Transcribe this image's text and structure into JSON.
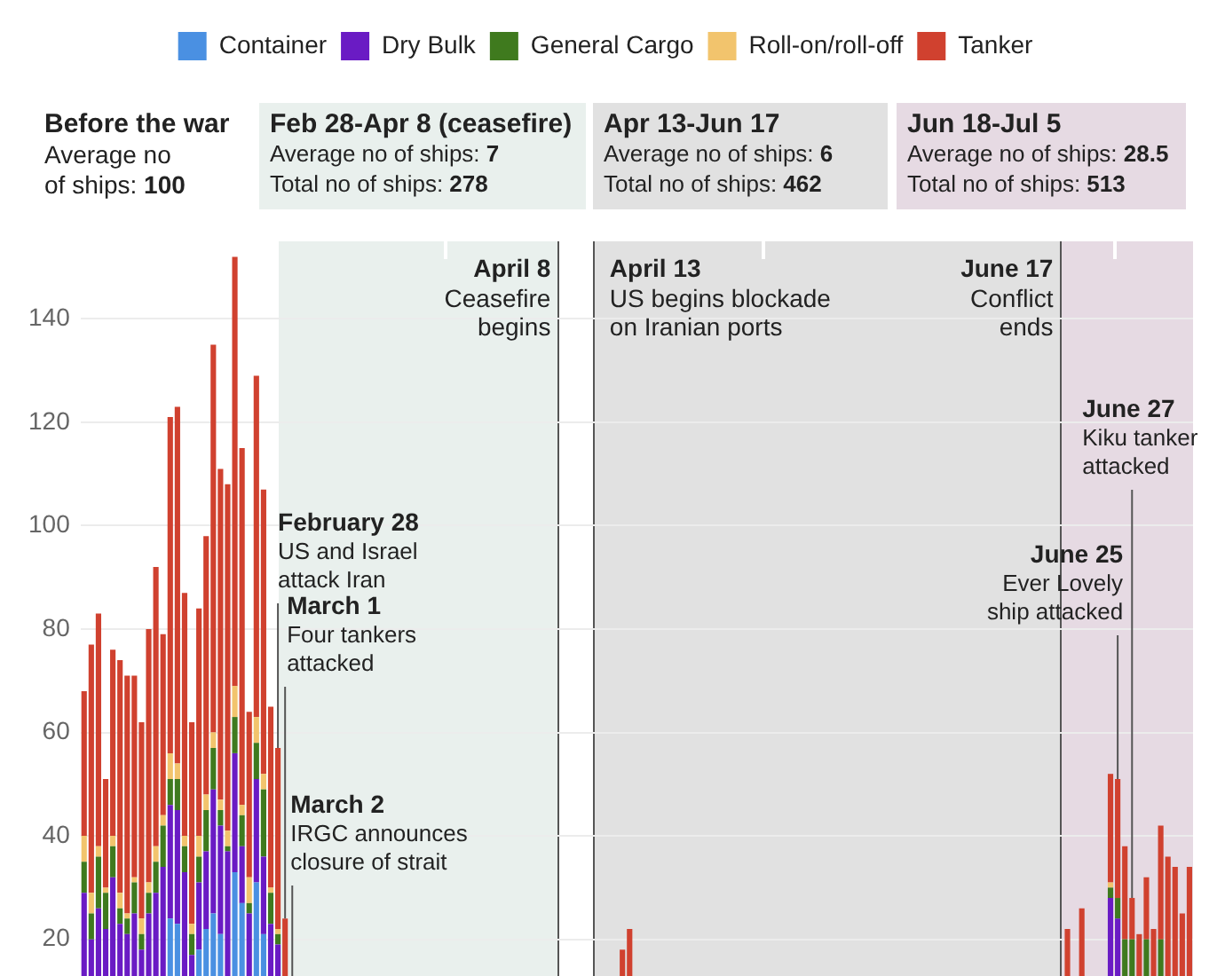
{
  "chart_data": {
    "type": "bar",
    "stacked": true,
    "legend": "top",
    "grid": "y",
    "tick_labels": "y",
    "categories": [
      null,
      null,
      null,
      null,
      null,
      null,
      null,
      null,
      null,
      null,
      null,
      null,
      null,
      null,
      null,
      null,
      null,
      null,
      null,
      null,
      null,
      null,
      null,
      null,
      null,
      null,
      null,
      null,
      null,
      null,
      null,
      null,
      null,
      null,
      null,
      null,
      null,
      null,
      null,
      null,
      null,
      null,
      null,
      null,
      null,
      null,
      null,
      null,
      null,
      null,
      null,
      null,
      null,
      null,
      null,
      null,
      null,
      null,
      null,
      null,
      null,
      null,
      null,
      null,
      null,
      null,
      null,
      null,
      null,
      null,
      null,
      null,
      null,
      null,
      null,
      null,
      null,
      null,
      null,
      null,
      null,
      null,
      null,
      null,
      null,
      null,
      null,
      null,
      null,
      null,
      null,
      null,
      null,
      null,
      null,
      null,
      null,
      null,
      null,
      null,
      null,
      null,
      null,
      null,
      null,
      null,
      null,
      null,
      null,
      null,
      null,
      null,
      null,
      null,
      null,
      null,
      null,
      null,
      null,
      null,
      null,
      null,
      null,
      null,
      null,
      null,
      null,
      null,
      null,
      null,
      null,
      null,
      null,
      null,
      null,
      null,
      null,
      null,
      null,
      null,
      null,
      null,
      null,
      null,
      null,
      null,
      null,
      null,
      null,
      null,
      null,
      null,
      null,
      null,
      null
    ],
    "ylim": [
      0,
      155
    ],
    "yticks": [
      20,
      40,
      60,
      80,
      100,
      120,
      140
    ],
    "series": [
      {
        "name": "Container",
        "color": "#4a90e2",
        "values": [
          null,
          null,
          null,
          null,
          null,
          null,
          null,
          null,
          null,
          null,
          null,
          null,
          24,
          23,
          null,
          null,
          18,
          22,
          25,
          21,
          null,
          33,
          27,
          null,
          31,
          21,
          null,
          null,
          null,
          null,
          null,
          null,
          null,
          null,
          null,
          null,
          null,
          null,
          null,
          null,
          null,
          null,
          null,
          null,
          null,
          null,
          null,
          null,
          null,
          null,
          null,
          null,
          null,
          null,
          null,
          null,
          null,
          null,
          null,
          null,
          null,
          null,
          null,
          null,
          null,
          null,
          null,
          null,
          null,
          null,
          null,
          null,
          null,
          null,
          null,
          null,
          null,
          null,
          null,
          null,
          null,
          null,
          null,
          null,
          null,
          null,
          null,
          null,
          null,
          null,
          null,
          null,
          null,
          null,
          null,
          null,
          null,
          null,
          null,
          null,
          null,
          null,
          null,
          null,
          null,
          null,
          null,
          null,
          null,
          null,
          null,
          null,
          null,
          null,
          null,
          null,
          null,
          null,
          null,
          null,
          null,
          null,
          null,
          null,
          null,
          null,
          null,
          null,
          null,
          null,
          null,
          null,
          null,
          null,
          null,
          null,
          null,
          null,
          null,
          null,
          null,
          null,
          null,
          null,
          null,
          null,
          null,
          null,
          null,
          null,
          null,
          null,
          null,
          null,
          null
        ]
      },
      {
        "name": "Dry Bulk",
        "color": "#6a1bc4",
        "values": [
          29,
          20,
          26,
          22,
          32,
          23,
          21,
          25,
          18,
          25,
          29,
          34,
          22,
          22,
          33,
          17,
          13,
          15,
          24,
          21,
          37,
          23,
          11,
          25,
          20,
          15,
          23,
          19,
          null,
          null,
          null,
          null,
          null,
          null,
          null,
          null,
          null,
          null,
          null,
          null,
          null,
          null,
          null,
          null,
          null,
          null,
          null,
          null,
          null,
          null,
          null,
          null,
          null,
          null,
          null,
          null,
          null,
          null,
          null,
          null,
          null,
          null,
          null,
          null,
          null,
          null,
          null,
          null,
          null,
          null,
          null,
          null,
          null,
          null,
          null,
          null,
          null,
          null,
          null,
          null,
          null,
          null,
          null,
          null,
          null,
          null,
          null,
          null,
          null,
          null,
          null,
          null,
          null,
          null,
          null,
          null,
          null,
          null,
          null,
          null,
          null,
          null,
          null,
          null,
          null,
          null,
          null,
          null,
          null,
          null,
          null,
          null,
          null,
          null,
          null,
          null,
          null,
          null,
          null,
          null,
          null,
          null,
          null,
          null,
          null,
          null,
          null,
          null,
          null,
          null,
          null,
          null,
          null,
          null,
          null,
          null,
          null,
          null,
          null,
          null,
          null,
          null,
          null,
          28,
          24,
          null,
          null,
          null,
          null,
          null,
          null,
          null,
          null,
          null,
          null
        ]
      },
      {
        "name": "General Cargo",
        "color": "#3f7a1e",
        "values": [
          6,
          5,
          10,
          7,
          6,
          3,
          3,
          6,
          3,
          4,
          6,
          8,
          5,
          6,
          5,
          4,
          5,
          8,
          8,
          3,
          1,
          7,
          6,
          2,
          7,
          13,
          6,
          2,
          null,
          null,
          null,
          null,
          null,
          null,
          null,
          null,
          null,
          null,
          null,
          null,
          null,
          null,
          null,
          null,
          null,
          null,
          null,
          null,
          null,
          null,
          null,
          null,
          null,
          null,
          null,
          null,
          null,
          null,
          null,
          null,
          null,
          null,
          null,
          null,
          null,
          null,
          null,
          null,
          null,
          null,
          null,
          null,
          null,
          null,
          null,
          null,
          null,
          null,
          null,
          null,
          null,
          null,
          null,
          null,
          null,
          null,
          null,
          null,
          null,
          null,
          null,
          null,
          null,
          null,
          null,
          null,
          null,
          null,
          null,
          null,
          null,
          null,
          null,
          null,
          null,
          null,
          null,
          null,
          null,
          null,
          null,
          null,
          null,
          null,
          null,
          null,
          null,
          null,
          null,
          null,
          null,
          null,
          null,
          null,
          null,
          null,
          null,
          null,
          null,
          null,
          null,
          null,
          null,
          null,
          null,
          null,
          null,
          null,
          null,
          null,
          null,
          null,
          null,
          2,
          4,
          20,
          20,
          null,
          20,
          null,
          20,
          null,
          null,
          null,
          null
        ]
      },
      {
        "name": "Roll-on/roll-off",
        "color": "#f2c46d",
        "values": [
          5,
          4,
          2,
          1,
          2,
          3,
          1,
          1,
          3,
          2,
          3,
          2,
          5,
          3,
          2,
          2,
          4,
          3,
          3,
          2,
          3,
          6,
          2,
          5,
          5,
          3,
          1,
          1,
          null,
          null,
          null,
          null,
          null,
          null,
          null,
          null,
          null,
          null,
          null,
          null,
          null,
          null,
          null,
          null,
          null,
          null,
          null,
          null,
          null,
          null,
          null,
          null,
          null,
          null,
          null,
          null,
          null,
          null,
          null,
          null,
          null,
          null,
          null,
          null,
          null,
          null,
          null,
          null,
          null,
          null,
          null,
          null,
          null,
          null,
          null,
          null,
          null,
          null,
          null,
          null,
          null,
          null,
          null,
          null,
          null,
          null,
          null,
          null,
          null,
          null,
          null,
          null,
          null,
          null,
          null,
          null,
          null,
          null,
          null,
          null,
          null,
          null,
          null,
          null,
          null,
          null,
          null,
          null,
          null,
          null,
          null,
          null,
          null,
          null,
          null,
          null,
          null,
          null,
          null,
          null,
          null,
          null,
          null,
          null,
          null,
          null,
          null,
          null,
          null,
          null,
          null,
          null,
          null,
          null,
          null,
          null,
          null,
          null,
          null,
          null,
          null,
          null,
          null,
          1,
          null,
          null,
          null,
          null,
          null,
          null,
          null,
          null,
          null,
          null,
          null
        ]
      },
      {
        "name": "Tanker",
        "color": "#d0412f",
        "values": [
          28,
          48,
          45,
          21,
          36,
          45,
          46,
          39,
          38,
          49,
          54,
          35,
          65,
          69,
          47,
          39,
          44,
          50,
          75,
          64,
          67,
          83,
          69,
          32,
          66,
          55,
          35,
          35,
          24,
          null,
          null,
          null,
          null,
          null,
          null,
          null,
          null,
          null,
          null,
          null,
          null,
          null,
          null,
          null,
          null,
          null,
          null,
          null,
          null,
          null,
          null,
          null,
          null,
          null,
          null,
          null,
          null,
          null,
          null,
          null,
          null,
          null,
          null,
          null,
          null,
          null,
          null,
          null,
          null,
          null,
          null,
          null,
          null,
          null,
          null,
          18,
          22,
          null,
          null,
          null,
          null,
          null,
          null,
          null,
          null,
          null,
          null,
          null,
          null,
          null,
          null,
          null,
          null,
          null,
          null,
          null,
          null,
          null,
          null,
          null,
          null,
          null,
          null,
          null,
          null,
          null,
          null,
          null,
          null,
          null,
          null,
          null,
          null,
          null,
          null,
          null,
          null,
          null,
          null,
          null,
          null,
          null,
          null,
          null,
          null,
          null,
          null,
          null,
          null,
          null,
          null,
          null,
          null,
          null,
          null,
          null,
          null,
          22,
          null,
          26,
          null,
          null,
          null,
          21,
          23,
          18,
          8,
          21,
          12,
          22,
          22,
          36,
          34,
          25,
          34
        ]
      }
    ],
    "annotations": [
      "Before the war\nAverage no\nof ships: 100",
      "Feb 28-Apr 8 (ceasefire)\nAverage no of ships: 7\nTotal no of ships: 278",
      "Apr 13-Jun 17\nAverage no of ships: 6\nTotal no of ships: 462",
      "Jun 18-Jul 5\nAverage no of ships: 28.5\nTotal no of ships: 513",
      "April 8\nCeasefire\nbegins",
      "April 13\nUS begins blockade\non Iranian ports",
      "June 17\nConflict\nends",
      "February 28\nUS and Israel\nattack Iran",
      "March 1\nFour tankers\nattacked",
      "March 2\nIRGC announces\nclosure of strait",
      "June 25\nEver Lovely\nship attacked",
      "June 27\nKiku tanker\nattacked"
    ]
  }
}
